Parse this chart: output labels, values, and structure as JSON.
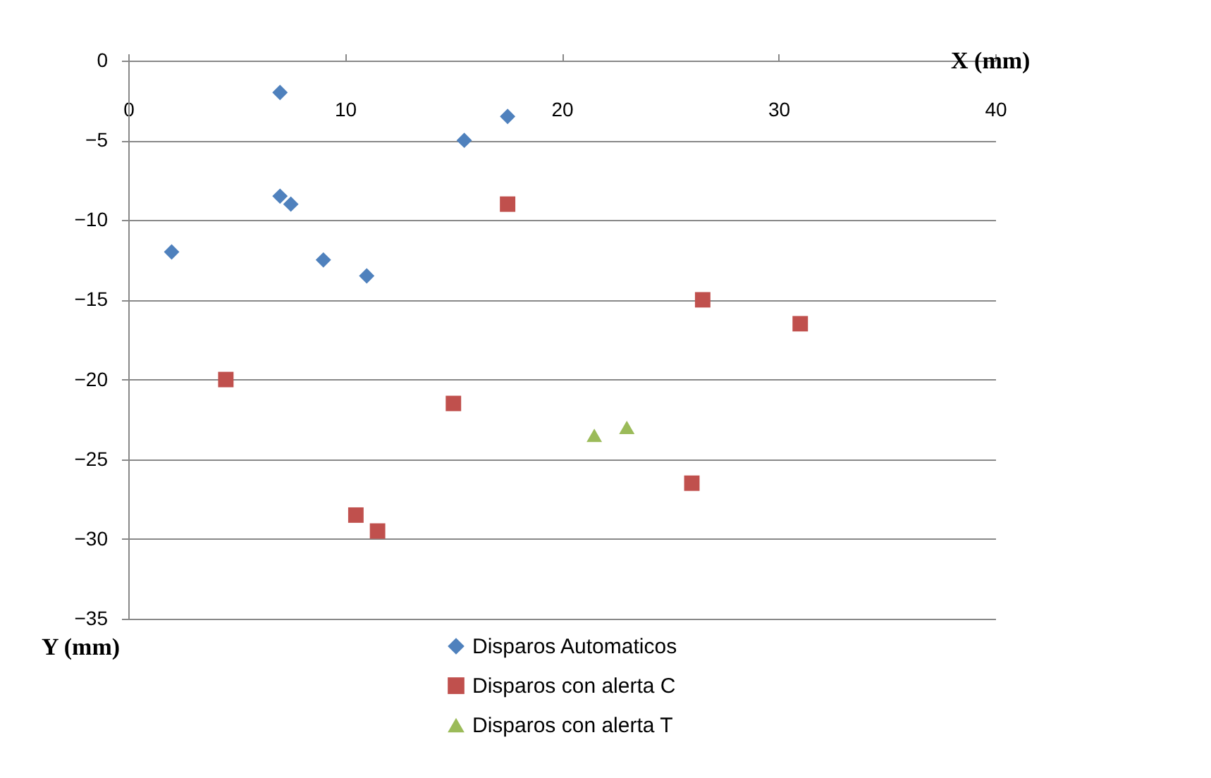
{
  "chart_data": {
    "type": "scatter",
    "xlabel": "X (mm)",
    "ylabel": "Y (mm)",
    "xlim": [
      0,
      40
    ],
    "xticks": [
      0,
      10,
      20,
      30,
      40
    ],
    "ylim": [
      -35,
      0
    ],
    "yticks": [
      -35,
      -30,
      -25,
      -20,
      -15,
      -10,
      -5,
      0
    ],
    "grid": "y",
    "legend": "bottom",
    "series": [
      {
        "name": "Disparos Automaticos",
        "color": "#4f81bd",
        "marker": "diamond",
        "x": [
          7,
          2,
          7,
          7.5,
          9,
          11,
          15.5,
          17.5
        ],
        "values": [
          -2,
          -12,
          -8.5,
          -9,
          -12.5,
          -13.5,
          -5,
          -3.5
        ]
      },
      {
        "name": "Disparos con alerta C",
        "color": "#c0504d",
        "marker": "square",
        "x": [
          4.5,
          10.5,
          11.5,
          15,
          17.5,
          26.5,
          26,
          31
        ],
        "values": [
          -20,
          -28.5,
          -29.5,
          -21.5,
          -9,
          -15,
          -26.5,
          -16.5
        ]
      },
      {
        "name": "Disparos con alerta T",
        "color": "#9bbb59",
        "marker": "triangle",
        "x": [
          21.5,
          23
        ],
        "values": [
          -23.5,
          -23
        ]
      }
    ]
  }
}
